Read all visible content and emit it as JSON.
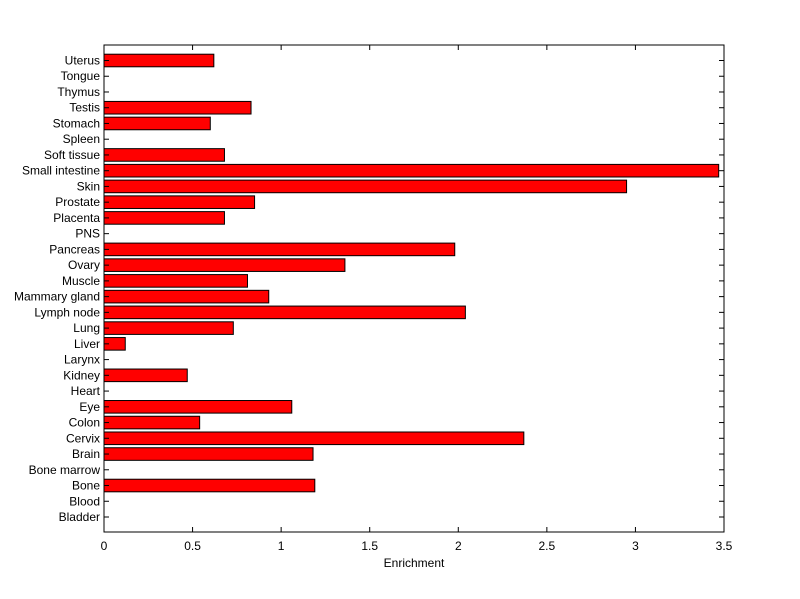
{
  "chart_data": {
    "type": "bar",
    "orientation": "horizontal",
    "categories": [
      "Bladder",
      "Blood",
      "Bone",
      "Bone marrow",
      "Brain",
      "Cervix",
      "Colon",
      "Eye",
      "Heart",
      "Kidney",
      "Larynx",
      "Liver",
      "Lung",
      "Lymph node",
      "Mammary gland",
      "Muscle",
      "Ovary",
      "Pancreas",
      "PNS",
      "Placenta",
      "Prostate",
      "Skin",
      "Small intestine",
      "Soft tissue",
      "Spleen",
      "Stomach",
      "Testis",
      "Thymus",
      "Tongue",
      "Uterus"
    ],
    "values": [
      0,
      0,
      1.19,
      0,
      1.18,
      2.37,
      0.54,
      1.06,
      0,
      0.47,
      0,
      0.12,
      0.73,
      2.04,
      0.93,
      0.81,
      1.36,
      1.98,
      0,
      0.68,
      0.85,
      2.95,
      3.47,
      0.68,
      0,
      0.6,
      0.83,
      0,
      0,
      0.62
    ],
    "xlabel": "Enrichment",
    "ylabel": "",
    "title": "",
    "xlim": [
      0,
      3.5
    ],
    "xticks": [
      0,
      0.5,
      1,
      1.5,
      2,
      2.5,
      3,
      3.5
    ],
    "xtick_labels": [
      "0",
      "0.5",
      "1",
      "1.5",
      "2",
      "2.5",
      "3",
      "3.5"
    ],
    "bar_color": "#ff0000",
    "edge_color": "#000000",
    "grid": false,
    "legend": "none"
  }
}
